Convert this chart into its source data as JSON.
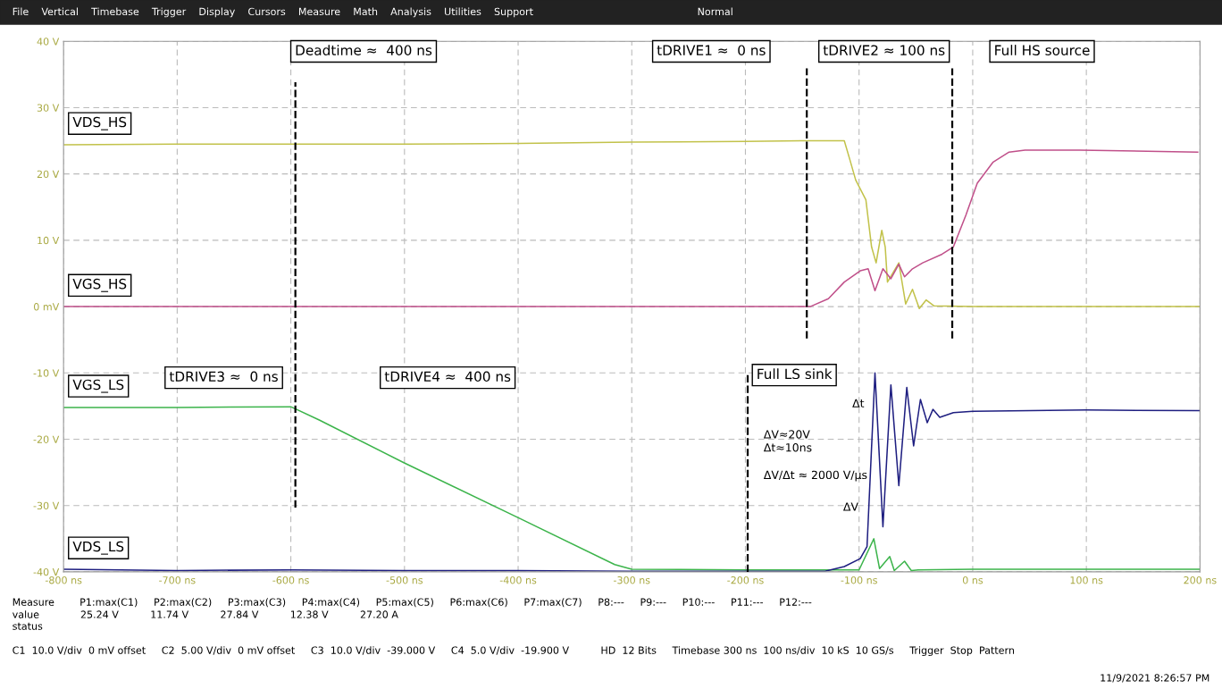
{
  "chart_data": {
    "type": "line",
    "xlim": [
      -800,
      200
    ],
    "ylim": [
      -40,
      40
    ],
    "xticks": [
      {
        "value": -800,
        "label": "-800 ns"
      },
      {
        "value": -700,
        "label": "-700 ns"
      },
      {
        "value": -600,
        "label": "-600 ns"
      },
      {
        "value": -500,
        "label": "-500 ns"
      },
      {
        "value": -400,
        "label": "-400 ns"
      },
      {
        "value": -300,
        "label": "-300 ns"
      },
      {
        "value": -200,
        "label": "-200 ns"
      },
      {
        "value": -100,
        "label": "-100 ns"
      },
      {
        "value": 0,
        "label": "0 ns"
      },
      {
        "value": 100,
        "label": "100 ns"
      },
      {
        "value": 200,
        "label": "200 ns"
      }
    ],
    "yticks": [
      {
        "value": -40,
        "label": "-40 V"
      },
      {
        "value": -30,
        "label": "-30 V"
      },
      {
        "value": -20,
        "label": "-20 V"
      },
      {
        "value": -10,
        "label": "-10 V"
      },
      {
        "value": 0,
        "label": "0 mV"
      },
      {
        "value": 10,
        "label": "10 V"
      },
      {
        "value": 20,
        "label": "20 V"
      },
      {
        "value": 30,
        "label": "30 V"
      },
      {
        "value": 40,
        "label": "40 V"
      }
    ],
    "grid": true,
    "legend": false,
    "marker": "none",
    "line_style": "solid",
    "series": [
      {
        "name": "VDS_HS",
        "color": "#c2c24a",
        "x": [
          -800,
          -700,
          -600,
          -500,
          -400,
          -300,
          -200,
          -150,
          -113,
          -108,
          -103,
          -94,
          -89,
          -85,
          -80,
          -77,
          -75,
          -65,
          -59,
          -53,
          -47,
          -41,
          -34,
          0,
          100,
          200
        ],
        "values": [
          24.4,
          24.5,
          24.5,
          24.5,
          24.6,
          24.8,
          24.9,
          25,
          25,
          22.1,
          19.1,
          16.1,
          9,
          6.6,
          11.5,
          9,
          3.7,
          6.6,
          0.4,
          2.6,
          -0.3,
          1,
          0.1,
          0,
          0,
          0
        ]
      },
      {
        "name": "VGS_HS",
        "color": "#c0508a",
        "x": [
          -800,
          -600,
          -400,
          -200,
          -143,
          -127,
          -113,
          -99,
          -92,
          -86,
          -79,
          -72,
          -65,
          -60,
          -53,
          -44,
          -27,
          -17,
          -6,
          4,
          18,
          32,
          46,
          94,
          198
        ],
        "values": [
          0,
          0,
          0,
          0,
          0,
          1.2,
          3.7,
          5.4,
          5.7,
          2.4,
          5.7,
          4.2,
          6.4,
          4.5,
          5.7,
          6.6,
          7.9,
          9,
          13.8,
          18.6,
          21.8,
          23.3,
          23.6,
          23.6,
          23.3
        ]
      },
      {
        "name": "VGS_LS",
        "color": "#3cb44b",
        "x": [
          -800,
          -700,
          -600,
          -575,
          -501,
          -399,
          -315,
          -300,
          -200,
          -100,
          -87,
          -82,
          -73,
          -69,
          -60,
          -54,
          -48,
          0,
          100,
          200
        ],
        "values": [
          -15.2,
          -15.2,
          -15.1,
          -17.1,
          -23.5,
          -31.9,
          -38.9,
          -39.6,
          -39.7,
          -39.7,
          -35,
          -39.5,
          -37.7,
          -39.8,
          -38.4,
          -39.8,
          -39.7,
          -39.6,
          -39.6,
          -39.6
        ]
      },
      {
        "name": "VDS_LS",
        "color": "#1e1e80",
        "x": [
          -800,
          -700,
          -600,
          -500,
          -400,
          -300,
          -200,
          -130,
          -113,
          -99,
          -93,
          -86,
          -79,
          -72,
          -65,
          -58,
          -52,
          -46,
          -40,
          -35,
          -29,
          -17,
          0,
          100,
          200
        ],
        "values": [
          -39.6,
          -39.8,
          -39.7,
          -39.8,
          -39.8,
          -39.9,
          -39.9,
          -39.9,
          -39.2,
          -38,
          -36.2,
          -10,
          -33.2,
          -11.8,
          -27,
          -12.2,
          -21,
          -14,
          -17.5,
          -15.5,
          -16.7,
          -16,
          -15.8,
          -15.6,
          -15.7
        ]
      }
    ],
    "ref_lines": [
      {
        "axis": "x",
        "value": -596,
        "color": "#000000",
        "line_style": "dashed"
      },
      {
        "axis": "x",
        "value": -198,
        "color": "#000000",
        "line_style": "dashed"
      },
      {
        "axis": "x",
        "value": -146,
        "color": "#000000",
        "line_style": "dashed"
      },
      {
        "axis": "x",
        "value": -18,
        "color": "#000000",
        "line_style": "dashed"
      }
    ],
    "annotations": [
      "Deadtime ≈  400 ns",
      "tDRIVE1 ≈  0 ns",
      "tDRIVE2 ≈ 100 ns",
      "Full HS source",
      "tDRIVE3 ≈  0 ns",
      "tDRIVE4 ≈  400 ns",
      "Full LS sink",
      "ΔV≈20V",
      "Δt≈10ns",
      "ΔV/Δt ≈ 2000 V/µs",
      "Δt",
      "ΔV",
      "File    Vertical    Timebase    Trigger    Display    Cursors    Measure    Math    Analysis    Utilities    Support                                                    Normal",
      "Measure        P1:max(C1)     P2:max(C2)     P3:max(C3)     P4:max(C4)     P5:max(C5)     P6:max(C6)     P7:max(C7)     P8:---     P9:---     P10:---     P11:---     P12:---",
      "value             25.24 V          11.74 V          27.84 V          12.38 V          27.20 A",
      "status",
      "C1  10.0 V/div  0 mV offset     C2  5.00 V/div  0 mV offset     C3  10.0 V/div  -39.000 V     C4  5.0 V/div  -19.900 V          HD  12 Bits     Timebase 300 ns  100 ns/div  10 kS  10 GS/s     Trigger  Stop  Pattern",
      "11/9/2021 8:26:57 PM"
    ]
  }
}
